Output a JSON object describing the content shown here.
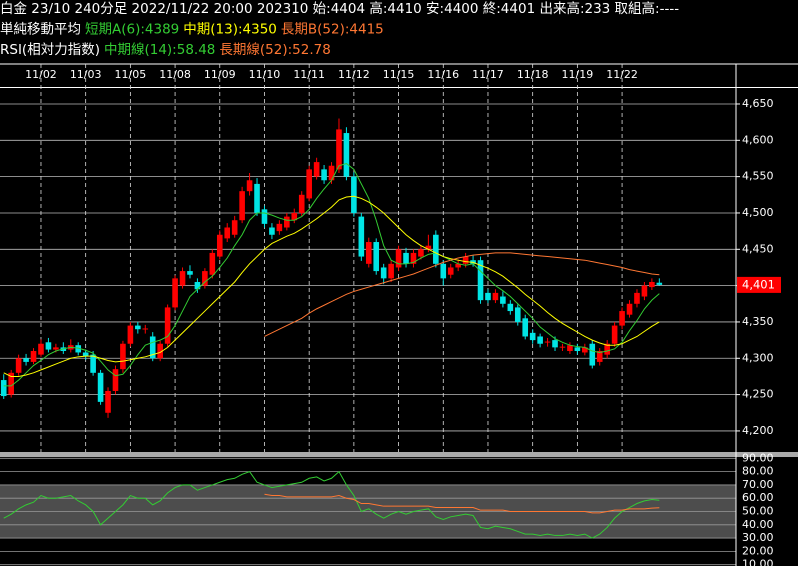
{
  "header": {
    "lines": [
      [
        {
          "text": "白金 23/10 240分足 2022/11/22 20:00 202310 始:4404 高:4410 安:4400 終:4401 出来高:233 取組高:----",
          "color": "#ffffff"
        }
      ],
      [
        {
          "text": "単純移動平均",
          "color": "#ffffff"
        },
        {
          "text": "短期A(6):4389",
          "color": "#33cc33"
        },
        {
          "text": "中期(13):4350",
          "color": "#ffff00"
        },
        {
          "text": "長期B(52):4415",
          "color": "#ff7733"
        }
      ],
      [
        {
          "text": "RSI(相対力指数)",
          "color": "#ffffff"
        },
        {
          "text": "中期線(14):58.48",
          "color": "#33cc33"
        },
        {
          "text": "長期線(52):52.78",
          "color": "#ff7733"
        }
      ]
    ]
  },
  "chart_data": [
    {
      "type": "candlestick",
      "up_color": "#ff0000",
      "down_color": "#00e5e5",
      "categories": [
        null,
        null,
        null,
        null,
        null,
        "11/02",
        null,
        null,
        null,
        null,
        null,
        "11/03",
        null,
        null,
        null,
        null,
        null,
        "11/05",
        null,
        null,
        null,
        null,
        null,
        "11/08",
        null,
        null,
        null,
        null,
        null,
        "11/09",
        null,
        null,
        null,
        null,
        null,
        "11/10",
        null,
        null,
        null,
        null,
        null,
        "11/11",
        null,
        null,
        null,
        null,
        null,
        "11/12",
        null,
        null,
        null,
        null,
        null,
        "11/15",
        null,
        null,
        null,
        null,
        null,
        "11/16",
        null,
        null,
        null,
        null,
        null,
        "11/17",
        null,
        null,
        null,
        null,
        null,
        "11/18",
        null,
        null,
        null,
        null,
        null,
        "11/19",
        null,
        null,
        null,
        null,
        null,
        "11/22",
        null,
        null,
        null,
        null,
        null
      ],
      "open": [
        4270,
        4250,
        4280,
        4300,
        4295,
        4305,
        4322,
        4312,
        4315,
        4312,
        4318,
        4308,
        4305,
        4280,
        4225,
        4255,
        4285,
        4320,
        4345,
        4340,
        4330,
        4300,
        4320,
        4370,
        4400,
        4420,
        4405,
        4400,
        4415,
        4440,
        4465,
        4470,
        4490,
        4530,
        4540,
        4505,
        4480,
        4475,
        4480,
        4490,
        4500,
        4520,
        4550,
        4560,
        4545,
        4560,
        4610,
        4550,
        4495,
        4430,
        4460,
        4425,
        4410,
        4425,
        4445,
        4430,
        4440,
        4450,
        4470,
        4430,
        4415,
        4425,
        4430,
        4435,
        4435,
        4390,
        4380,
        4385,
        4375,
        4370,
        4355,
        4335,
        4330,
        4322,
        4325,
        4315,
        4310,
        4315,
        4308,
        4320,
        4295,
        4305,
        4320,
        4345,
        4360,
        4375,
        4385,
        4398,
        4404
      ],
      "high": [
        4278,
        4284,
        4305,
        4306,
        4314,
        4326,
        4328,
        4320,
        4322,
        4326,
        4322,
        4312,
        4310,
        4284,
        4260,
        4290,
        4324,
        4350,
        4350,
        4346,
        4336,
        4324,
        4374,
        4414,
        4425,
        4428,
        4410,
        4424,
        4450,
        4476,
        4486,
        4496,
        4536,
        4555,
        4548,
        4510,
        4486,
        4490,
        4500,
        4506,
        4530,
        4565,
        4576,
        4566,
        4570,
        4630,
        4618,
        4556,
        4500,
        4466,
        4465,
        4430,
        4435,
        4455,
        4452,
        4450,
        4456,
        4470,
        4476,
        4435,
        4430,
        4436,
        4445,
        4442,
        4440,
        4395,
        4395,
        4392,
        4380,
        4374,
        4360,
        4340,
        4334,
        4328,
        4330,
        4320,
        4322,
        4320,
        4320,
        4325,
        4314,
        4325,
        4350,
        4370,
        4380,
        4395,
        4405,
        4410,
        4410
      ],
      "low": [
        4244,
        4246,
        4276,
        4290,
        4292,
        4302,
        4308,
        4308,
        4306,
        4308,
        4304,
        4298,
        4276,
        4236,
        4218,
        4250,
        4280,
        4316,
        4334,
        4334,
        4296,
        4296,
        4316,
        4366,
        4396,
        4410,
        4390,
        4396,
        4410,
        4436,
        4460,
        4466,
        4486,
        4524,
        4496,
        4480,
        4464,
        4470,
        4476,
        4486,
        4496,
        4516,
        4546,
        4540,
        4540,
        4555,
        4545,
        4495,
        4434,
        4425,
        4415,
        4402,
        4405,
        4420,
        4425,
        4425,
        4436,
        4446,
        4425,
        4400,
        4410,
        4420,
        4425,
        4426,
        4375,
        4376,
        4376,
        4370,
        4360,
        4345,
        4326,
        4320,
        4315,
        4316,
        4310,
        4310,
        4306,
        4305,
        4304,
        4286,
        4290,
        4300,
        4316,
        4340,
        4356,
        4370,
        4380,
        4394,
        4400
      ],
      "close": [
        4248,
        4280,
        4300,
        4295,
        4310,
        4320,
        4312,
        4315,
        4310,
        4318,
        4308,
        4303,
        4280,
        4240,
        4255,
        4285,
        4320,
        4345,
        4340,
        4341,
        4300,
        4320,
        4370,
        4410,
        4420,
        4415,
        4395,
        4420,
        4445,
        4470,
        4480,
        4490,
        4530,
        4545,
        4500,
        4485,
        4470,
        4485,
        4495,
        4500,
        4525,
        4560,
        4570,
        4545,
        4565,
        4615,
        4550,
        4500,
        4440,
        4460,
        4420,
        4410,
        4430,
        4450,
        4430,
        4445,
        4450,
        4455,
        4430,
        4410,
        4425,
        4430,
        4440,
        4430,
        4380,
        4380,
        4390,
        4375,
        4365,
        4350,
        4330,
        4325,
        4320,
        4323,
        4315,
        4316,
        4318,
        4310,
        4315,
        4290,
        4310,
        4320,
        4345,
        4365,
        4375,
        4390,
        4400,
        4405,
        4401
      ],
      "series": [
        {
          "name": "短期A(6)",
          "color": "#33cc33",
          "values": [
            4262,
            4262,
            4270,
            4280,
            4290,
            4297,
            4305,
            4310,
            4313,
            4315,
            4314,
            4311,
            4307,
            4296,
            4284,
            4276,
            4278,
            4290,
            4305,
            4318,
            4322,
            4325,
            4330,
            4345,
            4365,
            4385,
            4395,
            4405,
            4413,
            4425,
            4438,
            4455,
            4470,
            4490,
            4500,
            4500,
            4497,
            4493,
            4490,
            4490,
            4495,
            4505,
            4520,
            4533,
            4545,
            4565,
            4568,
            4560,
            4540,
            4520,
            4490,
            4455,
            4435,
            4430,
            4430,
            4432,
            4438,
            4443,
            4445,
            4440,
            4435,
            4430,
            4428,
            4430,
            4420,
            4410,
            4400,
            4393,
            4385,
            4375,
            4365,
            4355,
            4343,
            4335,
            4327,
            4322,
            4318,
            4316,
            4315,
            4310,
            4308,
            4310,
            4313,
            4322,
            4338,
            4352,
            4368,
            4380,
            4389
          ]
        },
        {
          "name": "中期(13)",
          "color": "#ffff00",
          "values": [
            4280,
            4275,
            4275,
            4277,
            4280,
            4284,
            4288,
            4292,
            4296,
            4300,
            4302,
            4303,
            4303,
            4300,
            4297,
            4295,
            4296,
            4298,
            4300,
            4302,
            4305,
            4308,
            4315,
            4325,
            4335,
            4345,
            4355,
            4365,
            4375,
            4385,
            4395,
            4405,
            4418,
            4430,
            4440,
            4450,
            4458,
            4463,
            4468,
            4472,
            4478,
            4485,
            4492,
            4500,
            4508,
            4518,
            4522,
            4523,
            4520,
            4515,
            4508,
            4500,
            4490,
            4480,
            4470,
            4462,
            4455,
            4450,
            4445,
            4440,
            4437,
            4435,
            4433,
            4432,
            4428,
            4424,
            4419,
            4413,
            4405,
            4397,
            4388,
            4380,
            4372,
            4363,
            4355,
            4348,
            4342,
            4336,
            4330,
            4325,
            4321,
            4318,
            4318,
            4320,
            4325,
            4330,
            4337,
            4344,
            4350
          ]
        },
        {
          "name": "長期B(52)",
          "color": "#ff7733",
          "values": [
            null,
            null,
            null,
            null,
            null,
            null,
            null,
            null,
            null,
            null,
            null,
            null,
            null,
            null,
            null,
            null,
            null,
            null,
            null,
            null,
            null,
            null,
            null,
            null,
            null,
            null,
            null,
            null,
            null,
            null,
            null,
            null,
            null,
            null,
            null,
            4330,
            4335,
            4340,
            4345,
            4350,
            4355,
            4362,
            4368,
            4373,
            4378,
            4383,
            4388,
            4392,
            4395,
            4398,
            4401,
            4404,
            4407,
            4410,
            4413,
            4416,
            4420,
            4424,
            4428,
            4432,
            4435,
            4438,
            4440,
            4442,
            4443,
            4444,
            4445,
            4445,
            4445,
            4444,
            4443,
            4442,
            4441,
            4440,
            4439,
            4438,
            4437,
            4436,
            4435,
            4433,
            4431,
            4429,
            4427,
            4425,
            4422,
            4420,
            4418,
            4416,
            4415
          ]
        }
      ],
      "ylim": [
        4171,
        4672
      ],
      "yticks": [
        {
          "value": 4200,
          "label": "4,200"
        },
        {
          "value": 4250,
          "label": "4,250"
        },
        {
          "value": 4300,
          "label": "4,300"
        },
        {
          "value": 4350,
          "label": "4,350"
        },
        {
          "value": 4400,
          "label": "4,400"
        },
        {
          "value": 4450,
          "label": "4,450"
        },
        {
          "value": 4500,
          "label": "4,500"
        },
        {
          "value": 4550,
          "label": "4,550"
        },
        {
          "value": 4600,
          "label": "4,600"
        },
        {
          "value": 4650,
          "label": "4,650"
        }
      ],
      "last_price": {
        "value": 4401,
        "label": "4,401"
      },
      "grid": true
    },
    {
      "type": "line",
      "series": [
        {
          "name": "中期線(14)",
          "color": "#33cc33",
          "values": [
            45,
            48,
            52,
            55,
            57,
            62,
            60,
            60,
            61,
            62,
            58,
            55,
            50,
            40,
            45,
            50,
            55,
            62,
            60,
            60,
            55,
            58,
            64,
            68,
            70,
            70,
            66,
            68,
            70,
            72,
            74,
            75,
            78,
            80,
            72,
            70,
            68,
            69,
            70,
            71,
            72,
            75,
            76,
            73,
            75,
            80,
            70,
            62,
            50,
            52,
            48,
            45,
            48,
            50,
            48,
            50,
            51,
            52,
            46,
            44,
            46,
            47,
            48,
            47,
            38,
            37,
            39,
            38,
            37,
            35,
            33,
            33,
            32,
            33,
            32,
            32,
            33,
            32,
            33,
            30,
            33,
            38,
            45,
            50,
            53,
            56,
            58,
            59,
            58.48
          ]
        },
        {
          "name": "長期線(52)",
          "color": "#ff7733",
          "values": [
            null,
            null,
            null,
            null,
            null,
            null,
            null,
            null,
            null,
            null,
            null,
            null,
            null,
            null,
            null,
            null,
            null,
            null,
            null,
            null,
            null,
            null,
            null,
            null,
            null,
            null,
            null,
            null,
            null,
            null,
            null,
            null,
            null,
            null,
            null,
            63,
            62,
            62,
            61,
            61,
            61,
            61,
            61,
            61,
            61,
            62,
            60,
            59,
            56,
            56,
            55,
            54,
            54,
            54,
            54,
            54,
            54,
            54,
            53,
            53,
            53,
            53,
            53,
            53,
            51,
            51,
            51,
            51,
            50,
            50,
            50,
            50,
            50,
            50,
            50,
            50,
            50,
            50,
            50,
            49,
            49,
            50,
            51,
            51,
            52,
            52,
            52,
            52.5,
            52.78
          ]
        }
      ],
      "ylim": [
        9,
        91
      ],
      "yticks": [
        {
          "value": 10,
          "label": "10.00"
        },
        {
          "value": 20,
          "label": "20.00"
        },
        {
          "value": 30,
          "label": "30.00"
        },
        {
          "value": 40,
          "label": "40.00"
        },
        {
          "value": 50,
          "label": "50.00"
        },
        {
          "value": 60,
          "label": "60.00"
        },
        {
          "value": 70,
          "label": "70.00"
        },
        {
          "value": 80,
          "label": "80.00"
        },
        {
          "value": 90,
          "label": "90.00"
        }
      ],
      "band": [
        30,
        70
      ],
      "grid": true
    }
  ]
}
